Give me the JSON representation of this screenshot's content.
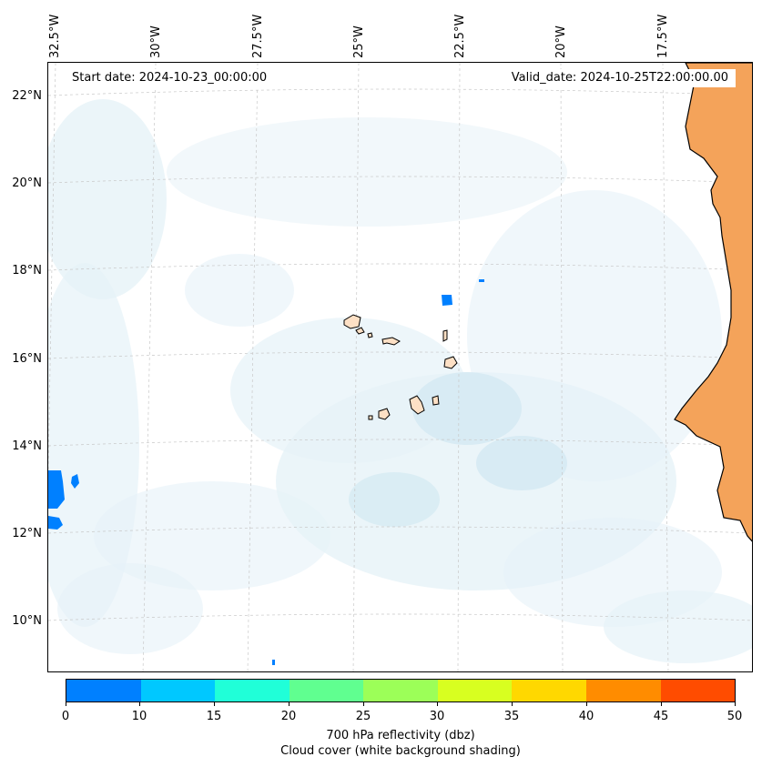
{
  "map": {
    "start_date": "Start date: 2024-10-23_00:00:00",
    "valid_date": "Valid_date: 2024-10-25T22:00:00.00",
    "lon_labels": [
      "32.5°W",
      "30°W",
      "27.5°W",
      "25°W",
      "22.5°W",
      "20°W",
      "17.5°W"
    ],
    "lat_labels": [
      "22°N",
      "20°N",
      "18°N",
      "16°N",
      "14°N",
      "12°N",
      "10°N"
    ],
    "colors": {
      "land": "#f4a35a",
      "island": "#fde0c5",
      "coast": "#000000",
      "cloud_light": "#e6f2f8",
      "cloud_mid": "#d3e9f2",
      "reflectivity_0_10": "#0080ff",
      "grid": "#c8c8c8"
    }
  },
  "colorbar": {
    "colors": [
      "#0080ff",
      "#00c8ff",
      "#20ffd8",
      "#60ff90",
      "#9cff58",
      "#d8ff20",
      "#ffd800",
      "#ff8c00",
      "#ff4c00"
    ],
    "ticks": [
      "0",
      "10",
      "15",
      "20",
      "25",
      "30",
      "35",
      "40",
      "45",
      "50"
    ],
    "label": "700 hPa reflectivity (dbz)",
    "sublabel": "Cloud cover (white background shading)"
  }
}
